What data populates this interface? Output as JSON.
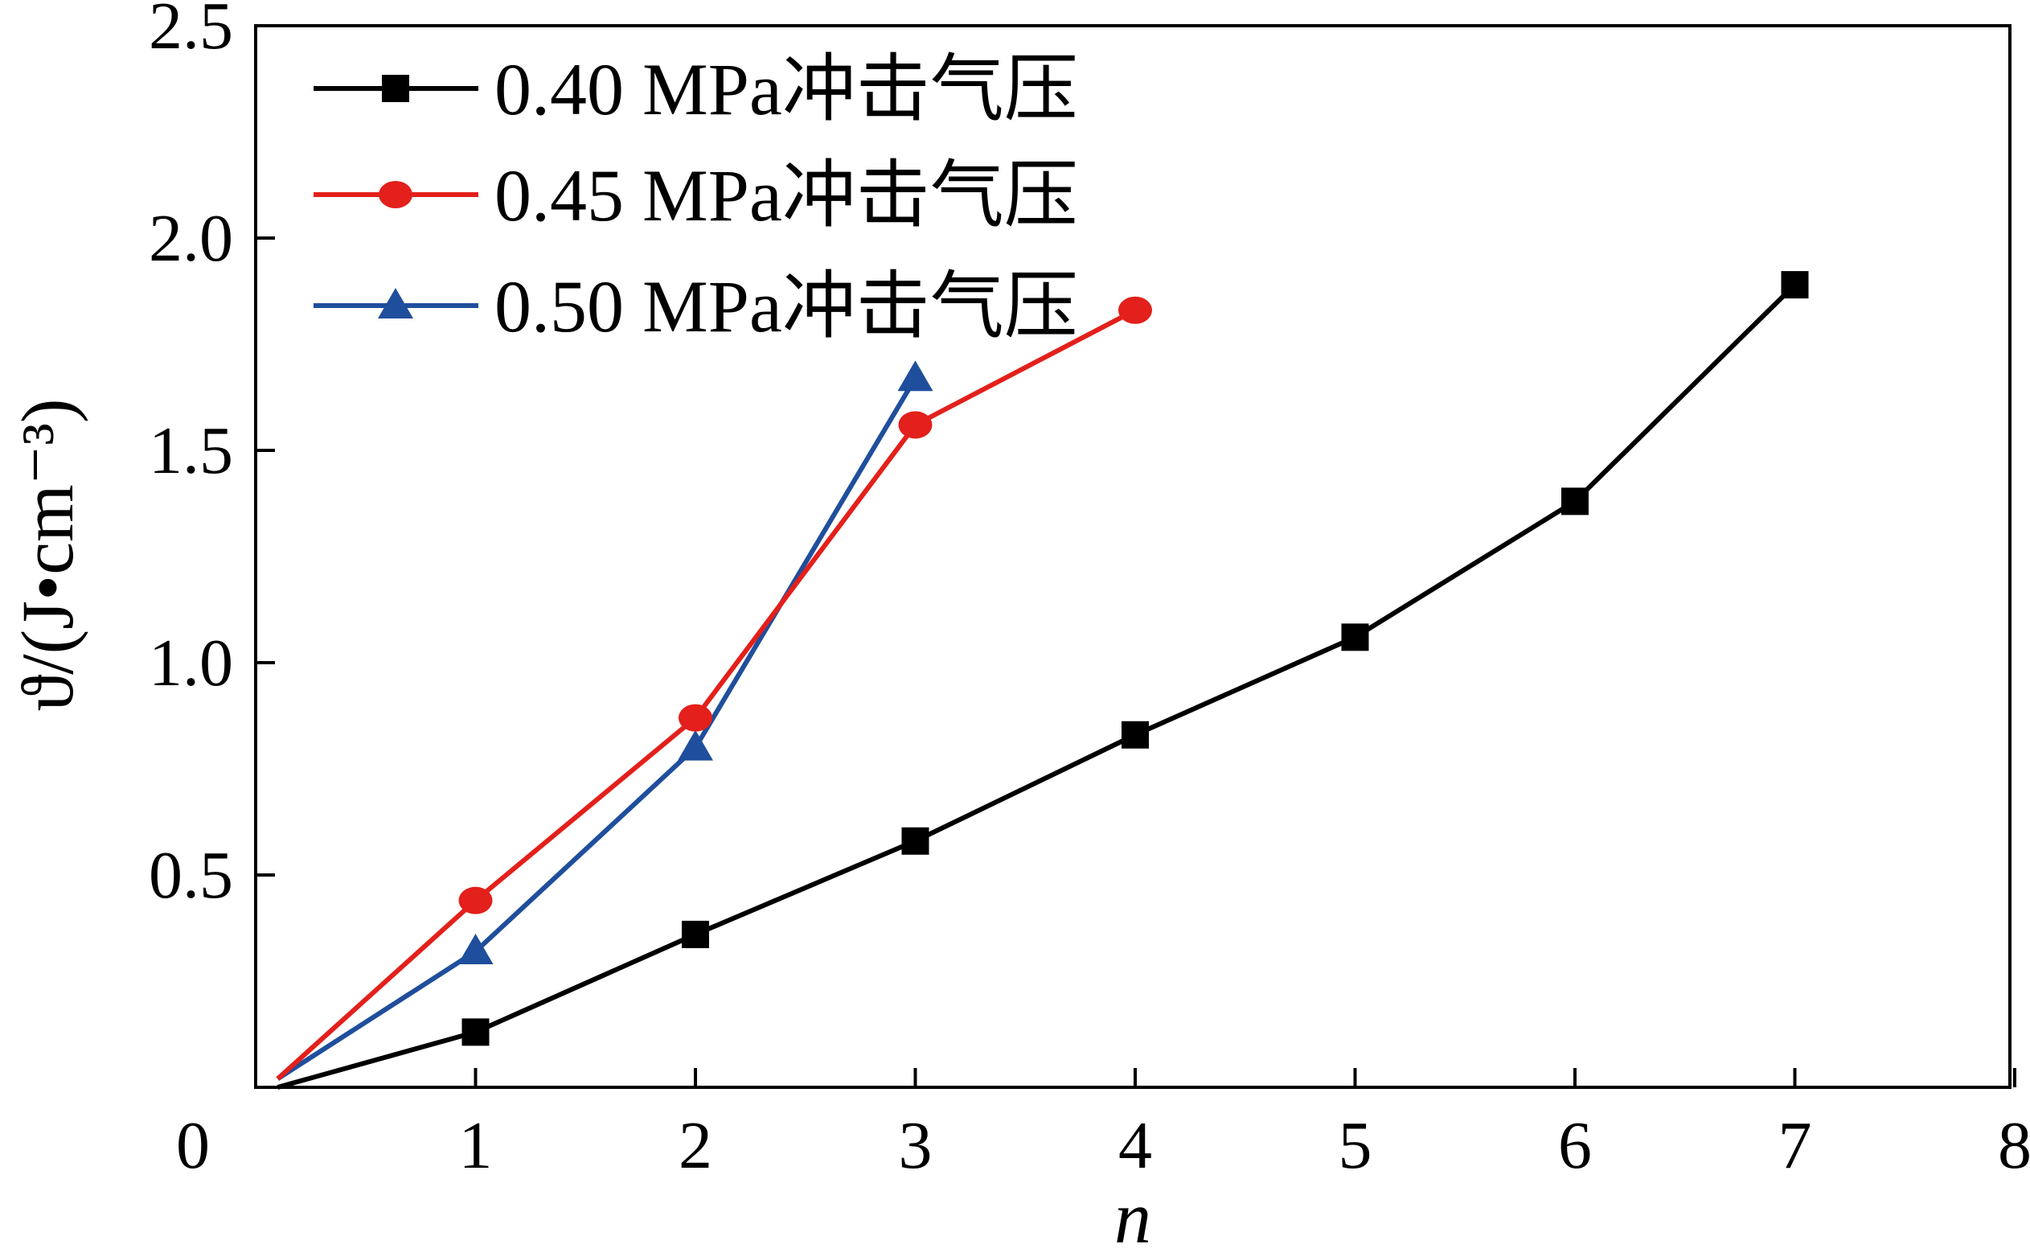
{
  "chart_data": {
    "type": "line",
    "xlabel": "n",
    "ylabel": "ϑ/(J•cm⁻³)",
    "xlim": [
      0,
      8
    ],
    "ylim": [
      0,
      2.5
    ],
    "x_origin_label": "0",
    "x_ticks": [
      "1",
      "2",
      "3",
      "4",
      "5",
      "6",
      "7",
      "8"
    ],
    "y_ticks": [
      "0.5",
      "1.0",
      "1.5",
      "2.0",
      "2.5"
    ],
    "grid": false,
    "legend_position": "top-left",
    "series": [
      {
        "name": "0.40 MPa冲击气压",
        "color": "#000000",
        "marker": "square",
        "x": [
          0.1,
          1,
          2,
          3,
          4,
          5,
          6,
          7
        ],
        "y": [
          0.0,
          0.13,
          0.36,
          0.58,
          0.83,
          1.06,
          1.38,
          1.89
        ]
      },
      {
        "name": "0.45 MPa冲击气压",
        "color": "#e3201b",
        "marker": "circle",
        "x": [
          0.1,
          1,
          2,
          3,
          4
        ],
        "y": [
          0.02,
          0.44,
          0.87,
          1.56,
          1.83
        ]
      },
      {
        "name": "0.50 MPa冲击气压",
        "color": "#1f4e9c",
        "marker": "triangle",
        "x": [
          0.1,
          1,
          2,
          3
        ],
        "y": [
          0.02,
          0.32,
          0.8,
          1.67
        ]
      }
    ]
  }
}
